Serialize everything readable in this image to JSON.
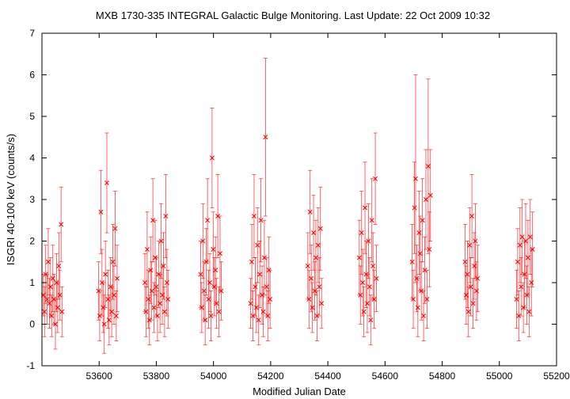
{
  "chart_data": {
    "type": "scatter",
    "title": "MXB 1730-335   INTEGRAL Galactic Bulge Monitoring.  Last Update: 22 Oct 2009 10:32",
    "xlabel": "Modified Julian Date",
    "ylabel": "ISGRI 40-100 keV (counts/s)",
    "xlim": [
      53400,
      55200
    ],
    "ylim": [
      -1,
      7
    ],
    "x_ticks": [
      "53600",
      "53800",
      "54000",
      "54200",
      "54400",
      "54600",
      "54800",
      "55000",
      "55200"
    ],
    "y_ticks": [
      "-1",
      "0",
      "1",
      "2",
      "3",
      "4",
      "5",
      "6",
      "7"
    ],
    "grid": false,
    "legend": "none",
    "marker": "x",
    "series": [
      {
        "color": "#ff0000",
        "points": [
          [
            53405,
            0.7,
            0.5
          ],
          [
            53409,
            0.3,
            0.6
          ],
          [
            53413,
            1.2,
            0.7
          ],
          [
            53418,
            0.6,
            0.6
          ],
          [
            53422,
            1.5,
            0.8
          ],
          [
            53426,
            0.5,
            0.6
          ],
          [
            53430,
            0.9,
            0.7
          ],
          [
            53434,
            0.2,
            0.5
          ],
          [
            53438,
            1.1,
            0.8
          ],
          [
            53442,
            0.6,
            0.6
          ],
          [
            53447,
            0.0,
            0.6
          ],
          [
            53451,
            1.0,
            0.7
          ],
          [
            53455,
            0.4,
            0.6
          ],
          [
            53459,
            1.4,
            0.8
          ],
          [
            53463,
            0.7,
            0.6
          ],
          [
            53467,
            2.4,
            0.9
          ],
          [
            53470,
            0.3,
            0.6
          ],
          [
            53598,
            0.8,
            0.7
          ],
          [
            53602,
            0.2,
            0.6
          ],
          [
            53606,
            2.7,
            1.0
          ],
          [
            53610,
            1.0,
            0.8
          ],
          [
            53614,
            0.4,
            0.6
          ],
          [
            53618,
            0.0,
            0.7
          ],
          [
            53622,
            1.2,
            0.8
          ],
          [
            53627,
            3.4,
            1.2
          ],
          [
            53631,
            0.6,
            0.7
          ],
          [
            53635,
            0.1,
            0.6
          ],
          [
            53640,
            0.9,
            0.7
          ],
          [
            53644,
            0.3,
            0.6
          ],
          [
            53648,
            1.5,
            0.9
          ],
          [
            53652,
            0.7,
            0.7
          ],
          [
            53656,
            2.3,
            0.9
          ],
          [
            53660,
            0.2,
            0.6
          ],
          [
            53663,
            1.1,
            0.8
          ],
          [
            53760,
            1.0,
            0.7
          ],
          [
            53764,
            0.3,
            0.6
          ],
          [
            53768,
            1.8,
            0.9
          ],
          [
            53772,
            0.6,
            0.7
          ],
          [
            53776,
            0.1,
            0.6
          ],
          [
            53780,
            1.3,
            0.8
          ],
          [
            53784,
            0.8,
            0.7
          ],
          [
            53788,
            2.5,
            1.0
          ],
          [
            53792,
            0.4,
            0.6
          ],
          [
            53796,
            1.6,
            0.9
          ],
          [
            53800,
            0.9,
            0.7
          ],
          [
            53804,
            0.2,
            0.6
          ],
          [
            53808,
            1.2,
            0.8
          ],
          [
            53813,
            0.5,
            0.7
          ],
          [
            53817,
            2.0,
            0.9
          ],
          [
            53821,
            0.7,
            0.7
          ],
          [
            53825,
            1.4,
            0.8
          ],
          [
            53829,
            0.3,
            0.6
          ],
          [
            53833,
            2.6,
            1.0
          ],
          [
            53837,
            1.0,
            0.8
          ],
          [
            53841,
            0.6,
            0.7
          ],
          [
            53955,
            1.2,
            0.8
          ],
          [
            53959,
            0.4,
            0.6
          ],
          [
            53963,
            2.0,
            0.9
          ],
          [
            53967,
            0.8,
            0.7
          ],
          [
            53971,
            0.1,
            0.6
          ],
          [
            53975,
            1.5,
            0.8
          ],
          [
            53979,
            2.5,
            1.0
          ],
          [
            53983,
            0.6,
            0.7
          ],
          [
            53987,
            1.0,
            0.7
          ],
          [
            53991,
            0.2,
            0.6
          ],
          [
            53995,
            4.0,
            1.2
          ],
          [
            53999,
            1.8,
            0.9
          ],
          [
            54003,
            0.9,
            0.7
          ],
          [
            54007,
            1.3,
            0.8
          ],
          [
            54011,
            0.5,
            0.6
          ],
          [
            54015,
            2.6,
            1.0
          ],
          [
            54019,
            0.3,
            0.6
          ],
          [
            54023,
            1.7,
            0.9
          ],
          [
            54027,
            0.8,
            0.7
          ],
          [
            54130,
            0.5,
            0.6
          ],
          [
            54134,
            1.5,
            0.9
          ],
          [
            54138,
            0.2,
            0.6
          ],
          [
            54142,
            2.6,
            1.0
          ],
          [
            54146,
            0.9,
            0.7
          ],
          [
            54150,
            0.4,
            0.6
          ],
          [
            54154,
            1.9,
            0.9
          ],
          [
            54158,
            0.1,
            0.6
          ],
          [
            54162,
            1.2,
            0.8
          ],
          [
            54166,
            2.5,
            1.0
          ],
          [
            54170,
            0.7,
            0.7
          ],
          [
            54174,
            0.3,
            0.6
          ],
          [
            54178,
            1.6,
            0.9
          ],
          [
            54182,
            4.5,
            1.9
          ],
          [
            54186,
            0.9,
            0.7
          ],
          [
            54190,
            0.2,
            0.6
          ],
          [
            54194,
            1.3,
            0.8
          ],
          [
            54198,
            0.6,
            0.7
          ],
          [
            54330,
            1.4,
            0.8
          ],
          [
            54334,
            0.6,
            0.7
          ],
          [
            54338,
            2.7,
            1.0
          ],
          [
            54342,
            1.1,
            0.8
          ],
          [
            54346,
            0.4,
            0.6
          ],
          [
            54350,
            2.2,
            0.9
          ],
          [
            54354,
            0.8,
            0.7
          ],
          [
            54358,
            1.6,
            0.9
          ],
          [
            54362,
            0.2,
            0.6
          ],
          [
            54366,
            1.9,
            0.9
          ],
          [
            54370,
            0.9,
            0.7
          ],
          [
            54374,
            2.3,
            1.0
          ],
          [
            54378,
            0.5,
            0.6
          ],
          [
            54510,
            1.6,
            0.9
          ],
          [
            54514,
            0.7,
            0.7
          ],
          [
            54518,
            2.2,
            1.0
          ],
          [
            54522,
            1.0,
            0.8
          ],
          [
            54526,
            0.3,
            0.6
          ],
          [
            54530,
            2.8,
            1.1
          ],
          [
            54534,
            1.2,
            0.8
          ],
          [
            54538,
            0.5,
            0.7
          ],
          [
            54542,
            2.0,
            0.9
          ],
          [
            54546,
            0.9,
            0.7
          ],
          [
            54550,
            0.1,
            0.6
          ],
          [
            54554,
            2.5,
            1.0
          ],
          [
            54558,
            1.4,
            0.8
          ],
          [
            54562,
            0.6,
            0.7
          ],
          [
            54566,
            3.5,
            1.1
          ],
          [
            54570,
            1.1,
            0.8
          ],
          [
            54695,
            1.5,
            0.9
          ],
          [
            54699,
            0.6,
            0.7
          ],
          [
            54703,
            2.8,
            1.1
          ],
          [
            54707,
            3.5,
            2.5
          ],
          [
            54711,
            1.1,
            0.8
          ],
          [
            54715,
            0.4,
            0.7
          ],
          [
            54719,
            2.2,
            1.0
          ],
          [
            54723,
            1.7,
            0.9
          ],
          [
            54727,
            0.8,
            0.7
          ],
          [
            54731,
            2.5,
            1.0
          ],
          [
            54735,
            0.2,
            0.6
          ],
          [
            54739,
            1.3,
            0.8
          ],
          [
            54743,
            3.0,
            1.2
          ],
          [
            54747,
            0.6,
            0.7
          ],
          [
            54751,
            3.8,
            2.1
          ],
          [
            54755,
            1.8,
            0.9
          ],
          [
            54759,
            3.1,
            1.1
          ],
          [
            54880,
            1.5,
            0.9
          ],
          [
            54884,
            0.7,
            0.7
          ],
          [
            54888,
            1.2,
            0.8
          ],
          [
            54892,
            0.3,
            0.6
          ],
          [
            54896,
            1.9,
            0.9
          ],
          [
            54900,
            0.9,
            0.7
          ],
          [
            54904,
            2.6,
            1.0
          ],
          [
            54908,
            0.5,
            0.6
          ],
          [
            54912,
            1.4,
            0.8
          ],
          [
            54916,
            2.0,
            0.9
          ],
          [
            54920,
            0.8,
            0.7
          ],
          [
            54924,
            1.1,
            0.8
          ],
          [
            55060,
            0.6,
            0.7
          ],
          [
            55064,
            1.5,
            0.8
          ],
          [
            55068,
            0.2,
            0.6
          ],
          [
            55072,
            1.9,
            0.9
          ],
          [
            55076,
            0.9,
            0.7
          ],
          [
            55080,
            2.1,
            0.9
          ],
          [
            55084,
            0.4,
            0.6
          ],
          [
            55088,
            1.2,
            0.8
          ],
          [
            55092,
            2.0,
            0.9
          ],
          [
            55096,
            0.7,
            0.7
          ],
          [
            55100,
            1.6,
            0.9
          ],
          [
            55104,
            0.3,
            0.6
          ],
          [
            55108,
            2.1,
            0.9
          ],
          [
            55112,
            1.0,
            0.8
          ],
          [
            55116,
            1.8,
            0.9
          ]
        ]
      }
    ]
  }
}
